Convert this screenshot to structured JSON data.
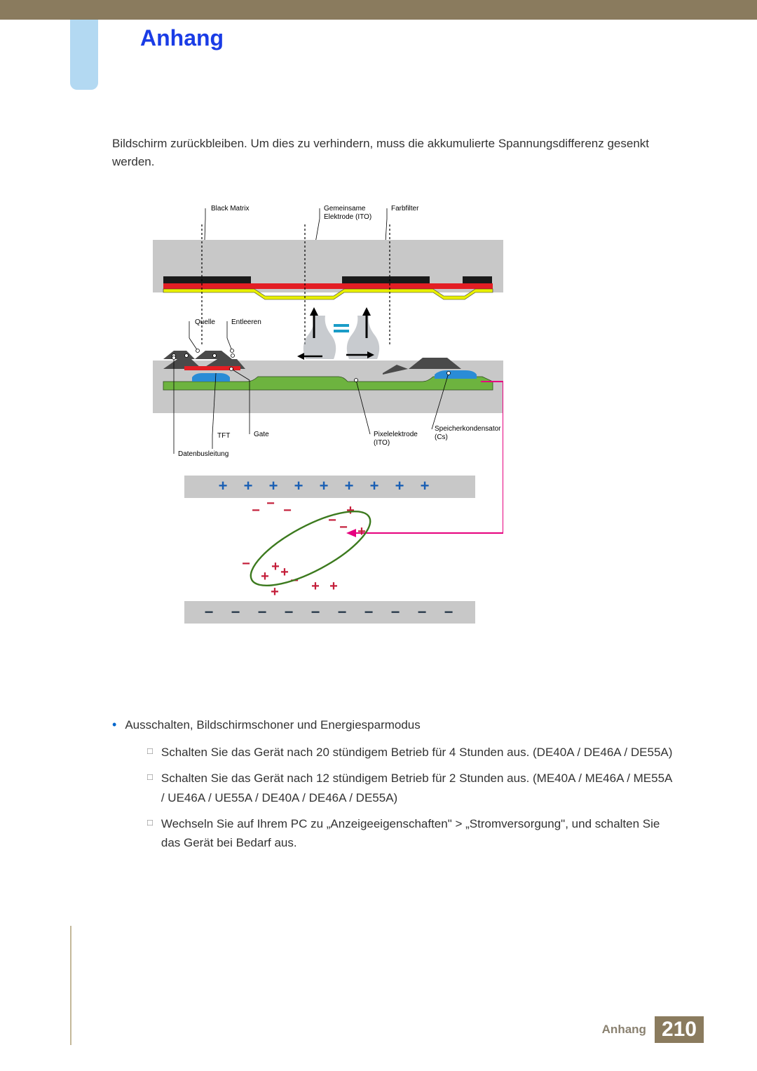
{
  "page": {
    "title": "Anhang",
    "footer_label": "Anhang",
    "page_number": "210"
  },
  "intro": "Bildschirm zurückbleiben. Um dies zu verhindern, muss die akkumulierte Spannungsdifferenz gesenkt werden.",
  "diagram": {
    "labels": {
      "black_matrix": "Black Matrix",
      "gemeinsame": "Gemeinsame",
      "elektrode_ito": "Elektrode (ITO)",
      "farbfilter": "Farbfilter",
      "quelle": "Quelle",
      "entleeren": "Entleeren",
      "tft": "TFT",
      "gate": "Gate",
      "datenbusleitung": "Datenbusleitung",
      "pixelelektrode": "Pixelelektrode",
      "ito": "(ITO)",
      "speicherkondensator": "Speicherkondensator",
      "cs": "(Cs)"
    },
    "colors": {
      "band_bg": "#c8c8c8",
      "black_matrix": "#1a1a1a",
      "yellow": "#e8f000",
      "red": "#e31e24",
      "green": "#6db33f",
      "blue_fill": "#2a8cd6",
      "tft_gray": "#4a4a4a",
      "pink_arrow": "#e6007e",
      "smoke": "#9aa0a8",
      "leader": "#000000",
      "plus_blue": "#1a5fb4",
      "minus_top": "#c41e3a",
      "minus_bottom": "#2a3b4c",
      "plus_red": "#c41e3a",
      "ellipse": "#3c7a1e"
    },
    "charges": {
      "top_plus_count": 9,
      "bottom_minus_count": 10
    },
    "label_fontsize": 10
  },
  "list": {
    "main": "Ausschalten, Bildschirmschoner und Energiesparmodus",
    "sub": [
      "Schalten Sie das Gerät nach 20 stündigem Betrieb für 4 Stunden aus. (DE40A / DE46A / DE55A)",
      "Schalten Sie das Gerät nach 12 stündigem Betrieb für 2 Stunden aus. (ME40A / ME46A / ME55A / UE46A / UE55A / DE40A / DE46A / DE55A)",
      "Wechseln Sie auf Ihrem PC zu „Anzeigeeigenschaften\" > „Stromversorgung\", und schalten Sie das Gerät bei Bedarf aus."
    ]
  }
}
